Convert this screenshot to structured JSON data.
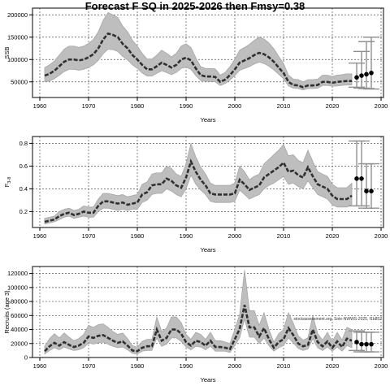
{
  "title": "Forecast F SQ in 2025-2026 then Fmsy=0.38",
  "watermark": "stockassessment.org, Sole-NWWS-2025, f1b852",
  "colors": {
    "band": "#bebebe",
    "band_line": "#a6a6a6",
    "line": "#303030",
    "forecast": "#000000",
    "errorbar": "#909090",
    "grid": "#555555"
  },
  "chart_data": [
    {
      "type": "line",
      "ylabel": "SSB",
      "xlabel": "Years",
      "xlim": [
        1958.5,
        2030.5
      ],
      "ylim": [
        15000,
        215000
      ],
      "xticks": [
        1960,
        1970,
        1980,
        1990,
        2000,
        2010,
        2020,
        2030
      ],
      "yticks": [
        50000,
        100000,
        150000,
        200000
      ],
      "grid": true,
      "x": [
        1961,
        1962,
        1963,
        1964,
        1965,
        1966,
        1967,
        1968,
        1969,
        1970,
        1971,
        1972,
        1973,
        1974,
        1975,
        1976,
        1977,
        1978,
        1979,
        1980,
        1981,
        1982,
        1983,
        1984,
        1985,
        1986,
        1987,
        1988,
        1989,
        1990,
        1991,
        1992,
        1993,
        1994,
        1995,
        1996,
        1997,
        1998,
        1999,
        2000,
        2001,
        2002,
        2003,
        2004,
        2005,
        2006,
        2007,
        2008,
        2009,
        2010,
        2011,
        2012,
        2013,
        2014,
        2015,
        2016,
        2017,
        2018,
        2019,
        2020,
        2021,
        2022,
        2023,
        2024
      ],
      "values": [
        64000,
        68000,
        75000,
        85000,
        95000,
        100000,
        100000,
        98000,
        100000,
        105000,
        112000,
        125000,
        145000,
        158000,
        155000,
        150000,
        135000,
        125000,
        110000,
        100000,
        88000,
        78000,
        78000,
        85000,
        93000,
        88000,
        82000,
        88000,
        100000,
        104000,
        98000,
        80000,
        65000,
        62000,
        62000,
        61000,
        50000,
        55000,
        65000,
        78000,
        93000,
        98000,
        103000,
        110000,
        115000,
        112000,
        105000,
        95000,
        82000,
        70000,
        50000,
        43000,
        42000,
        38000,
        42000,
        42000,
        43000,
        50000,
        50000,
        48000,
        50000,
        51000,
        52000,
        52000
      ],
      "lower": [
        50000,
        52000,
        57000,
        65000,
        73000,
        78000,
        78000,
        76000,
        78000,
        82000,
        88000,
        98000,
        113000,
        123000,
        122000,
        118000,
        107000,
        99000,
        88000,
        80000,
        70000,
        63000,
        63000,
        69000,
        75000,
        71000,
        66000,
        71000,
        80000,
        83000,
        78000,
        64000,
        53000,
        51000,
        51000,
        50000,
        42000,
        46000,
        54000,
        64000,
        76000,
        80000,
        84000,
        90000,
        94000,
        91000,
        85000,
        77000,
        67000,
        57000,
        41000,
        36000,
        35000,
        32000,
        35000,
        35000,
        36000,
        42000,
        42000,
        40000,
        41000,
        42000,
        43000,
        43000
      ],
      "upper": [
        82000,
        88000,
        97000,
        110000,
        123000,
        130000,
        130000,
        127000,
        130000,
        136000,
        145000,
        162000,
        188000,
        205000,
        200000,
        194000,
        175000,
        162000,
        143000,
        130000,
        114000,
        101000,
        101000,
        110000,
        121000,
        114000,
        106000,
        114000,
        130000,
        135000,
        127000,
        104000,
        84000,
        80000,
        80000,
        79000,
        65000,
        71000,
        84000,
        101000,
        121000,
        127000,
        134000,
        143000,
        150000,
        146000,
        137000,
        124000,
        107000,
        91000,
        65000,
        56000,
        55000,
        50000,
        55000,
        55000,
        56000,
        65000,
        65000,
        62000,
        65000,
        66000,
        68000,
        68000
      ],
      "forecast": [
        {
          "x": 2025,
          "y": 60000,
          "lower": 38000,
          "upper": 92000
        },
        {
          "x": 2026,
          "y": 64000,
          "lower": 36000,
          "upper": 118000
        },
        {
          "x": 2027,
          "y": 67000,
          "lower": 35000,
          "upper": 140000
        },
        {
          "x": 2028,
          "y": 70000,
          "lower": 34000,
          "upper": 150000
        }
      ]
    },
    {
      "type": "line",
      "ylabel": "F",
      "ylabel_sub": "3-8",
      "xlabel": "Years",
      "xlim": [
        1958.5,
        2030.5
      ],
      "ylim": [
        0.06,
        0.86
      ],
      "xticks": [
        1960,
        1970,
        1980,
        1990,
        2000,
        2010,
        2020,
        2030
      ],
      "yticks": [
        0.2,
        0.4,
        0.6,
        0.8
      ],
      "grid": true,
      "x": [
        1961,
        1962,
        1963,
        1964,
        1965,
        1966,
        1967,
        1968,
        1969,
        1970,
        1971,
        1972,
        1973,
        1974,
        1975,
        1976,
        1977,
        1978,
        1979,
        1980,
        1981,
        1982,
        1983,
        1984,
        1985,
        1986,
        1987,
        1988,
        1989,
        1990,
        1991,
        1992,
        1993,
        1994,
        1995,
        1996,
        1997,
        1998,
        1999,
        2000,
        2001,
        2002,
        2003,
        2004,
        2005,
        2006,
        2007,
        2008,
        2009,
        2010,
        2011,
        2012,
        2013,
        2014,
        2015,
        2016,
        2017,
        2018,
        2019,
        2020,
        2021,
        2022,
        2023,
        2024
      ],
      "values": [
        0.11,
        0.12,
        0.13,
        0.16,
        0.18,
        0.19,
        0.17,
        0.18,
        0.2,
        0.19,
        0.19,
        0.25,
        0.29,
        0.29,
        0.28,
        0.27,
        0.28,
        0.26,
        0.27,
        0.28,
        0.35,
        0.37,
        0.43,
        0.44,
        0.44,
        0.49,
        0.47,
        0.43,
        0.41,
        0.5,
        0.64,
        0.55,
        0.48,
        0.43,
        0.36,
        0.35,
        0.35,
        0.35,
        0.35,
        0.36,
        0.48,
        0.44,
        0.39,
        0.41,
        0.43,
        0.5,
        0.53,
        0.56,
        0.59,
        0.63,
        0.55,
        0.56,
        0.52,
        0.5,
        0.59,
        0.51,
        0.44,
        0.42,
        0.4,
        0.34,
        0.31,
        0.31,
        0.31,
        0.34
      ],
      "lower": [
        0.09,
        0.1,
        0.11,
        0.13,
        0.15,
        0.16,
        0.14,
        0.15,
        0.16,
        0.15,
        0.15,
        0.2,
        0.23,
        0.23,
        0.22,
        0.21,
        0.22,
        0.21,
        0.22,
        0.22,
        0.28,
        0.3,
        0.35,
        0.36,
        0.36,
        0.4,
        0.38,
        0.35,
        0.33,
        0.4,
        0.52,
        0.44,
        0.39,
        0.35,
        0.29,
        0.28,
        0.28,
        0.28,
        0.28,
        0.29,
        0.39,
        0.35,
        0.31,
        0.33,
        0.35,
        0.4,
        0.43,
        0.45,
        0.48,
        0.51,
        0.44,
        0.45,
        0.42,
        0.4,
        0.47,
        0.41,
        0.35,
        0.33,
        0.31,
        0.26,
        0.24,
        0.24,
        0.24,
        0.26
      ],
      "upper": [
        0.14,
        0.15,
        0.16,
        0.2,
        0.22,
        0.23,
        0.21,
        0.22,
        0.25,
        0.24,
        0.24,
        0.31,
        0.36,
        0.36,
        0.35,
        0.34,
        0.35,
        0.33,
        0.34,
        0.35,
        0.44,
        0.46,
        0.53,
        0.54,
        0.54,
        0.6,
        0.58,
        0.53,
        0.51,
        0.62,
        0.8,
        0.68,
        0.59,
        0.53,
        0.45,
        0.43,
        0.43,
        0.43,
        0.43,
        0.45,
        0.6,
        0.55,
        0.48,
        0.51,
        0.53,
        0.62,
        0.66,
        0.7,
        0.74,
        0.79,
        0.69,
        0.7,
        0.65,
        0.63,
        0.74,
        0.64,
        0.55,
        0.53,
        0.51,
        0.44,
        0.41,
        0.41,
        0.41,
        0.45
      ],
      "forecast": [
        {
          "x": 2025,
          "y": 0.49,
          "lower": 0.25,
          "upper": 0.82
        },
        {
          "x": 2026,
          "y": 0.49,
          "lower": 0.25,
          "upper": 0.82
        },
        {
          "x": 2027,
          "y": 0.38,
          "lower": 0.23,
          "upper": 0.62
        },
        {
          "x": 2028,
          "y": 0.38,
          "lower": 0.23,
          "upper": 0.62
        }
      ]
    },
    {
      "type": "line",
      "ylabel": "Recruits (age 3)",
      "xlabel": "Years",
      "xlim": [
        1958.5,
        2030.5
      ],
      "ylim": [
        0,
        130000
      ],
      "xticks": [
        1960,
        1970,
        1980,
        1990,
        2000,
        2010,
        2020,
        2030
      ],
      "yticks": [
        0,
        20000,
        40000,
        60000,
        80000,
        100000,
        120000
      ],
      "grid": true,
      "x": [
        1961,
        1962,
        1963,
        1964,
        1965,
        1966,
        1967,
        1968,
        1969,
        1970,
        1971,
        1972,
        1973,
        1974,
        1975,
        1976,
        1977,
        1978,
        1979,
        1980,
        1981,
        1982,
        1983,
        1984,
        1985,
        1986,
        1987,
        1988,
        1989,
        1990,
        1991,
        1992,
        1993,
        1994,
        1995,
        1996,
        1997,
        1998,
        1999,
        2000,
        2001,
        2002,
        2003,
        2004,
        2005,
        2006,
        2007,
        2008,
        2009,
        2010,
        2011,
        2012,
        2013,
        2014,
        2015,
        2016,
        2017,
        2018,
        2019,
        2020,
        2021,
        2022,
        2023,
        2024
      ],
      "values": [
        9000,
        16000,
        21000,
        17000,
        22000,
        18000,
        15000,
        17000,
        21000,
        30000,
        28000,
        31000,
        32000,
        28000,
        24000,
        21000,
        23000,
        17000,
        10000,
        9000,
        14000,
        16000,
        16000,
        40000,
        24000,
        28000,
        40000,
        40000,
        34000,
        22000,
        17000,
        24000,
        22000,
        17000,
        24000,
        15000,
        15000,
        14000,
        12000,
        26000,
        41000,
        75000,
        43000,
        43000,
        30000,
        42000,
        26000,
        14000,
        22000,
        26000,
        42000,
        32000,
        20000,
        16000,
        18000,
        40000,
        22000,
        16000,
        23000,
        14000,
        23000,
        15000,
        27000,
        24000
      ],
      "lower": [
        5000,
        10000,
        14000,
        11000,
        15000,
        12000,
        10000,
        11000,
        14000,
        21000,
        19000,
        21000,
        22000,
        19000,
        16000,
        14000,
        15000,
        11000,
        6000,
        5000,
        9000,
        10000,
        10000,
        28000,
        16000,
        19000,
        28000,
        28000,
        23000,
        15000,
        11000,
        16000,
        15000,
        11000,
        16000,
        9000,
        9000,
        9000,
        7000,
        17000,
        28000,
        55000,
        29000,
        29000,
        20000,
        28000,
        17000,
        9000,
        14000,
        17000,
        28000,
        21000,
        13000,
        10000,
        12000,
        27000,
        14000,
        10000,
        15000,
        9000,
        15000,
        9000,
        17000,
        14000
      ],
      "upper": [
        16000,
        27000,
        34000,
        28000,
        35000,
        29000,
        24000,
        27000,
        33000,
        46000,
        43000,
        47000,
        48000,
        43000,
        37000,
        33000,
        35000,
        27000,
        17000,
        15000,
        23000,
        26000,
        26000,
        58000,
        37000,
        42000,
        58000,
        58000,
        50000,
        33000,
        26000,
        36000,
        33000,
        26000,
        36000,
        24000,
        24000,
        22000,
        20000,
        40000,
        62000,
        125000,
        67000,
        67000,
        46000,
        64000,
        40000,
        22000,
        34000,
        40000,
        64000,
        49000,
        31000,
        25000,
        28000,
        60000,
        34000,
        25000,
        36000,
        23000,
        36000,
        25000,
        43000,
        40000
      ],
      "forecast": [
        {
          "x": 2025,
          "y": 22000,
          "lower": 10000,
          "upper": 38000
        },
        {
          "x": 2026,
          "y": 19000,
          "lower": 8000,
          "upper": 36000
        },
        {
          "x": 2027,
          "y": 19000,
          "lower": 8000,
          "upper": 36000
        },
        {
          "x": 2028,
          "y": 19000,
          "lower": 8000,
          "upper": 36000
        }
      ]
    }
  ]
}
